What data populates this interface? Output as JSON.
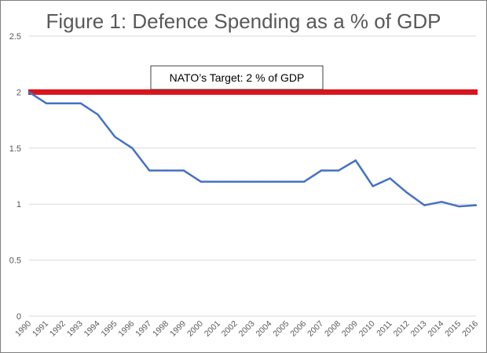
{
  "chart_data": {
    "type": "line",
    "title": "Figure 1: Defence Spending as a % of GDP",
    "xlabel": "",
    "ylabel": "",
    "ylim": [
      0,
      2.5
    ],
    "yticks": [
      "0",
      "0.5",
      "1",
      "1.5",
      "2",
      "2.5"
    ],
    "grid": true,
    "categories": [
      "1990",
      "1991",
      "1992",
      "1993",
      "1994",
      "1995",
      "1996",
      "1997",
      "1998",
      "1999",
      "2000",
      "2001",
      "2002",
      "2003",
      "2004",
      "2005",
      "2006",
      "2007",
      "2008",
      "2009",
      "2010",
      "2011",
      "2012",
      "2013",
      "2014",
      "2015",
      "2016"
    ],
    "series": [
      {
        "name": "Defence Spending",
        "color": "#4472c4",
        "values": [
          2.0,
          1.9,
          1.9,
          1.9,
          1.8,
          1.6,
          1.5,
          1.3,
          1.3,
          1.3,
          1.2,
          1.2,
          1.2,
          1.2,
          1.2,
          1.2,
          1.2,
          1.3,
          1.3,
          1.39,
          1.16,
          1.23,
          1.1,
          0.99,
          1.02,
          0.98,
          0.99
        ]
      }
    ],
    "target": {
      "value": 2,
      "color": "#d9141c",
      "label": "NATO’s Target: 2 % of GDP"
    }
  }
}
